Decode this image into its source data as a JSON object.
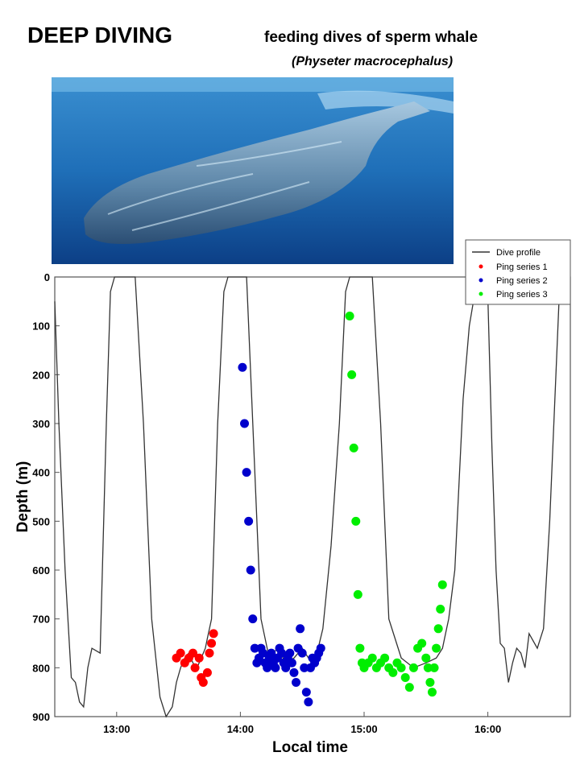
{
  "header": {
    "title": "DEEP DIVING",
    "subtitle": "feeding dives of sperm whale",
    "species": "(Physeter macrocephalus)"
  },
  "photo": {
    "subject": "sperm whale underwater"
  },
  "colors": {
    "profile": "#333333",
    "ping1": "#ff0000",
    "ping2": "#0000cc",
    "ping3": "#00ee00"
  },
  "chart_data": {
    "type": "scatter",
    "xlabel": "Local time",
    "ylabel": "Depth (m)",
    "xlim": [
      "12:30",
      "16:40"
    ],
    "ylim": [
      900,
      0
    ],
    "x_ticks": [
      "13:00",
      "14:00",
      "15:00",
      "16:00"
    ],
    "y_ticks": [
      0,
      100,
      200,
      300,
      400,
      500,
      600,
      700,
      800,
      900
    ],
    "legend_position": "top-right",
    "grid": false,
    "series": [
      {
        "name": "Dive profile",
        "kind": "line",
        "x": [
          "12:30",
          "12:32",
          "12:35",
          "12:38",
          "12:40",
          "12:42",
          "12:44",
          "12:46",
          "12:48",
          "12:52",
          "12:55",
          "12:57",
          "12:59",
          "13:09",
          "13:13",
          "13:17",
          "13:21",
          "13:24",
          "13:27",
          "13:29",
          "13:31",
          "13:33",
          "13:35",
          "13:37",
          "13:39",
          "13:41",
          "13:43",
          "13:44",
          "13:46",
          "13:49",
          "13:52",
          "13:54",
          "14:03",
          "14:06",
          "14:10",
          "14:14",
          "14:18",
          "14:22",
          "14:26",
          "14:30",
          "14:33",
          "14:36",
          "14:40",
          "14:44",
          "14:48",
          "14:51",
          "14:53",
          "15:04",
          "15:08",
          "15:12",
          "15:18",
          "15:24",
          "15:30",
          "15:35",
          "15:38",
          "15:40",
          "15:41",
          "15:44",
          "15:48",
          "15:51",
          "15:55",
          "15:57",
          "16:00",
          "16:02",
          "16:04",
          "16:06",
          "16:08",
          "16:10",
          "16:12",
          "16:14",
          "16:16",
          "16:18",
          "16:20",
          "16:24",
          "16:27",
          "16:30",
          "16:33",
          "16:35",
          "16:37"
        ],
        "y": [
          50,
          300,
          600,
          820,
          830,
          870,
          880,
          800,
          760,
          770,
          300,
          30,
          0,
          0,
          300,
          700,
          860,
          900,
          880,
          830,
          800,
          780,
          770,
          790,
          800,
          780,
          760,
          740,
          700,
          300,
          30,
          0,
          0,
          300,
          700,
          780,
          760,
          790,
          780,
          760,
          780,
          790,
          720,
          550,
          300,
          30,
          0,
          0,
          300,
          700,
          780,
          800,
          790,
          780,
          760,
          720,
          700,
          600,
          250,
          100,
          0,
          0,
          40,
          350,
          600,
          750,
          760,
          830,
          790,
          760,
          770,
          800,
          730,
          760,
          720,
          500,
          200,
          0,
          0
        ]
      },
      {
        "name": "Ping series 1",
        "kind": "points",
        "x": [
          "13:29",
          "13:31",
          "13:33",
          "13:35",
          "13:37",
          "13:38",
          "13:40",
          "13:41",
          "13:42",
          "13:44",
          "13:45",
          "13:46",
          "13:47"
        ],
        "y": [
          780,
          770,
          790,
          780,
          770,
          800,
          780,
          820,
          830,
          810,
          770,
          750,
          730
        ]
      },
      {
        "name": "Ping series 2",
        "kind": "points",
        "x": [
          "14:01",
          "14:02",
          "14:03",
          "14:04",
          "14:05",
          "14:06",
          "14:07",
          "14:08",
          "14:09",
          "14:10",
          "14:11",
          "14:12",
          "14:13",
          "14:14",
          "14:15",
          "14:16",
          "14:17",
          "14:18",
          "14:19",
          "14:20",
          "14:21",
          "14:22",
          "14:23",
          "14:24",
          "14:25",
          "14:26",
          "14:27",
          "14:28",
          "14:29",
          "14:30",
          "14:31",
          "14:32",
          "14:33",
          "14:34",
          "14:35",
          "14:36",
          "14:37",
          "14:38",
          "14:39"
        ],
        "y": [
          185,
          300,
          400,
          500,
          600,
          700,
          760,
          790,
          780,
          760,
          770,
          790,
          800,
          780,
          770,
          790,
          800,
          780,
          760,
          770,
          790,
          800,
          780,
          770,
          790,
          810,
          830,
          760,
          720,
          770,
          800,
          850,
          870,
          800,
          780,
          790,
          780,
          770,
          760
        ]
      },
      {
        "name": "Ping series 3",
        "kind": "points",
        "x": [
          "14:53",
          "14:54",
          "14:55",
          "14:56",
          "14:57",
          "14:58",
          "14:59",
          "15:00",
          "15:02",
          "15:04",
          "15:06",
          "15:08",
          "15:10",
          "15:12",
          "15:14",
          "15:16",
          "15:18",
          "15:20",
          "15:22",
          "15:24",
          "15:26",
          "15:28",
          "15:30",
          "15:31",
          "15:32",
          "15:33",
          "15:34",
          "15:35",
          "15:36",
          "15:37",
          "15:38"
        ],
        "y": [
          80,
          200,
          350,
          500,
          650,
          760,
          790,
          800,
          790,
          780,
          800,
          790,
          780,
          800,
          810,
          790,
          800,
          820,
          840,
          800,
          760,
          750,
          780,
          800,
          830,
          850,
          800,
          760,
          720,
          680,
          630
        ]
      }
    ]
  }
}
